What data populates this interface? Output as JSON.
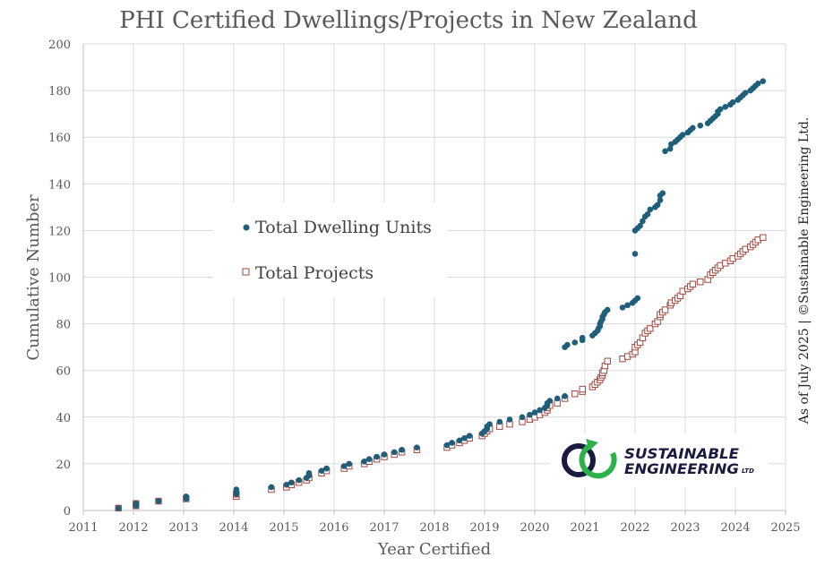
{
  "chart_data": {
    "type": "scatter",
    "title": "PHI Certified Dwellings/Projects in New Zealand",
    "xlabel": "Year Certified",
    "ylabel": "Cumulative Number",
    "xlim": [
      2011,
      2025
    ],
    "ylim": [
      0,
      200
    ],
    "x_ticks": [
      "2011",
      "2012",
      "2013",
      "2014",
      "2015",
      "2016",
      "2017",
      "2018",
      "2019",
      "2020",
      "2021",
      "2022",
      "2023",
      "2024",
      "2025"
    ],
    "y_ticks": [
      "0",
      "20",
      "40",
      "60",
      "80",
      "100",
      "120",
      "140",
      "160",
      "180",
      "200"
    ],
    "grid": true,
    "legend_position": "center-left",
    "series": [
      {
        "name": "Total Dwelling Units",
        "marker": "filled-circle",
        "color": "#1f5f7a",
        "points": [
          [
            2011.7,
            1
          ],
          [
            2012.05,
            2
          ],
          [
            2012.05,
            3
          ],
          [
            2012.5,
            4
          ],
          [
            2013.05,
            5
          ],
          [
            2013.05,
            6
          ],
          [
            2014.05,
            7
          ],
          [
            2014.05,
            8
          ],
          [
            2014.05,
            9
          ],
          [
            2014.75,
            10
          ],
          [
            2015.05,
            11
          ],
          [
            2015.15,
            12
          ],
          [
            2015.3,
            13
          ],
          [
            2015.45,
            14
          ],
          [
            2015.5,
            15
          ],
          [
            2015.5,
            16
          ],
          [
            2015.75,
            17
          ],
          [
            2015.85,
            18
          ],
          [
            2016.2,
            19
          ],
          [
            2016.3,
            20
          ],
          [
            2016.6,
            21
          ],
          [
            2016.7,
            22
          ],
          [
            2016.85,
            23
          ],
          [
            2017.0,
            24
          ],
          [
            2017.2,
            25
          ],
          [
            2017.35,
            26
          ],
          [
            2017.65,
            27
          ],
          [
            2018.25,
            28
          ],
          [
            2018.35,
            29
          ],
          [
            2018.5,
            30
          ],
          [
            2018.6,
            31
          ],
          [
            2018.7,
            32
          ],
          [
            2018.95,
            33
          ],
          [
            2019.0,
            34
          ],
          [
            2019.05,
            35
          ],
          [
            2019.05,
            36
          ],
          [
            2019.1,
            37
          ],
          [
            2019.3,
            38
          ],
          [
            2019.5,
            39
          ],
          [
            2019.75,
            40
          ],
          [
            2019.9,
            41
          ],
          [
            2020.0,
            42
          ],
          [
            2020.1,
            43
          ],
          [
            2020.2,
            44
          ],
          [
            2020.25,
            45
          ],
          [
            2020.25,
            46
          ],
          [
            2020.3,
            47
          ],
          [
            2020.45,
            48
          ],
          [
            2020.6,
            49
          ],
          [
            2020.6,
            70
          ],
          [
            2020.65,
            71
          ],
          [
            2020.8,
            72
          ],
          [
            2020.95,
            73
          ],
          [
            2020.95,
            74
          ],
          [
            2021.15,
            75
          ],
          [
            2021.2,
            76
          ],
          [
            2021.25,
            77
          ],
          [
            2021.27,
            78
          ],
          [
            2021.3,
            79
          ],
          [
            2021.3,
            80
          ],
          [
            2021.32,
            81
          ],
          [
            2021.35,
            82
          ],
          [
            2021.35,
            83
          ],
          [
            2021.38,
            84
          ],
          [
            2021.4,
            85
          ],
          [
            2021.45,
            86
          ],
          [
            2021.75,
            87
          ],
          [
            2021.85,
            88
          ],
          [
            2021.95,
            89
          ],
          [
            2022.0,
            90
          ],
          [
            2022.05,
            91
          ],
          [
            2022.0,
            110
          ],
          [
            2022.0,
            120
          ],
          [
            2022.05,
            121
          ],
          [
            2022.1,
            122
          ],
          [
            2022.15,
            124
          ],
          [
            2022.2,
            126
          ],
          [
            2022.25,
            127
          ],
          [
            2022.3,
            129
          ],
          [
            2022.4,
            130
          ],
          [
            2022.45,
            131
          ],
          [
            2022.5,
            133
          ],
          [
            2022.5,
            135
          ],
          [
            2022.55,
            136
          ],
          [
            2022.6,
            154
          ],
          [
            2022.7,
            155
          ],
          [
            2022.72,
            157
          ],
          [
            2022.8,
            158
          ],
          [
            2022.85,
            159
          ],
          [
            2022.9,
            160
          ],
          [
            2022.95,
            161
          ],
          [
            2023.05,
            162
          ],
          [
            2023.1,
            163
          ],
          [
            2023.15,
            164
          ],
          [
            2023.3,
            165
          ],
          [
            2023.45,
            166
          ],
          [
            2023.5,
            167
          ],
          [
            2023.55,
            168
          ],
          [
            2023.6,
            169
          ],
          [
            2023.65,
            170
          ],
          [
            2023.65,
            171
          ],
          [
            2023.7,
            172
          ],
          [
            2023.8,
            173
          ],
          [
            2023.9,
            174
          ],
          [
            2023.95,
            175
          ],
          [
            2024.05,
            176
          ],
          [
            2024.1,
            177
          ],
          [
            2024.15,
            178
          ],
          [
            2024.2,
            179
          ],
          [
            2024.3,
            180
          ],
          [
            2024.35,
            181
          ],
          [
            2024.4,
            182
          ],
          [
            2024.45,
            183
          ],
          [
            2024.55,
            184
          ]
        ]
      },
      {
        "name": "Total Projects",
        "marker": "hollow-square",
        "color": "#a0473f",
        "points": [
          [
            2011.7,
            1
          ],
          [
            2012.05,
            2
          ],
          [
            2012.05,
            3
          ],
          [
            2012.5,
            4
          ],
          [
            2013.05,
            5
          ],
          [
            2014.05,
            6
          ],
          [
            2014.05,
            7
          ],
          [
            2014.75,
            9
          ],
          [
            2015.05,
            10
          ],
          [
            2015.15,
            11
          ],
          [
            2015.3,
            12
          ],
          [
            2015.45,
            13
          ],
          [
            2015.5,
            14
          ],
          [
            2015.75,
            16
          ],
          [
            2015.85,
            17
          ],
          [
            2016.2,
            18
          ],
          [
            2016.3,
            19
          ],
          [
            2016.6,
            20
          ],
          [
            2016.7,
            21
          ],
          [
            2016.85,
            22
          ],
          [
            2017.0,
            23
          ],
          [
            2017.2,
            24
          ],
          [
            2017.35,
            25
          ],
          [
            2017.65,
            26
          ],
          [
            2018.25,
            27
          ],
          [
            2018.35,
            28
          ],
          [
            2018.5,
            29
          ],
          [
            2018.6,
            30
          ],
          [
            2018.7,
            31
          ],
          [
            2018.95,
            32
          ],
          [
            2019.0,
            33
          ],
          [
            2019.05,
            34
          ],
          [
            2019.1,
            35
          ],
          [
            2019.3,
            36
          ],
          [
            2019.5,
            37
          ],
          [
            2019.75,
            38
          ],
          [
            2019.9,
            39
          ],
          [
            2020.0,
            40
          ],
          [
            2020.1,
            41
          ],
          [
            2020.2,
            42
          ],
          [
            2020.25,
            43
          ],
          [
            2020.25,
            44
          ],
          [
            2020.3,
            45
          ],
          [
            2020.45,
            46
          ],
          [
            2020.6,
            48
          ],
          [
            2020.8,
            50
          ],
          [
            2020.95,
            51
          ],
          [
            2020.95,
            52
          ],
          [
            2021.15,
            53
          ],
          [
            2021.2,
            54
          ],
          [
            2021.25,
            55
          ],
          [
            2021.3,
            56
          ],
          [
            2021.32,
            57
          ],
          [
            2021.35,
            58
          ],
          [
            2021.35,
            59
          ],
          [
            2021.38,
            60
          ],
          [
            2021.4,
            62
          ],
          [
            2021.45,
            64
          ],
          [
            2021.75,
            65
          ],
          [
            2021.85,
            66
          ],
          [
            2021.95,
            67
          ],
          [
            2022.0,
            68
          ],
          [
            2022.0,
            70
          ],
          [
            2022.05,
            71
          ],
          [
            2022.1,
            72
          ],
          [
            2022.15,
            74
          ],
          [
            2022.2,
            76
          ],
          [
            2022.25,
            77
          ],
          [
            2022.3,
            78
          ],
          [
            2022.4,
            80
          ],
          [
            2022.45,
            81
          ],
          [
            2022.5,
            83
          ],
          [
            2022.5,
            84
          ],
          [
            2022.55,
            85
          ],
          [
            2022.6,
            86
          ],
          [
            2022.7,
            88
          ],
          [
            2022.72,
            89
          ],
          [
            2022.8,
            90
          ],
          [
            2022.85,
            91
          ],
          [
            2022.9,
            92
          ],
          [
            2022.95,
            94
          ],
          [
            2023.05,
            95
          ],
          [
            2023.1,
            96
          ],
          [
            2023.15,
            97
          ],
          [
            2023.3,
            98
          ],
          [
            2023.45,
            99
          ],
          [
            2023.5,
            101
          ],
          [
            2023.55,
            102
          ],
          [
            2023.6,
            103
          ],
          [
            2023.65,
            104
          ],
          [
            2023.7,
            105
          ],
          [
            2023.8,
            106
          ],
          [
            2023.9,
            107
          ],
          [
            2023.95,
            108
          ],
          [
            2024.05,
            109
          ],
          [
            2024.1,
            110
          ],
          [
            2024.15,
            111
          ],
          [
            2024.2,
            112
          ],
          [
            2024.3,
            113
          ],
          [
            2024.35,
            114
          ],
          [
            2024.4,
            115
          ],
          [
            2024.45,
            116
          ],
          [
            2024.55,
            117
          ]
        ]
      }
    ],
    "annotation": "As of July 2025  |  ©Sustainable Engineering Ltd."
  },
  "logo": {
    "line1": "SUSTAINABLE",
    "line2": "ENGINEERING",
    "suffix": "LTD",
    "colors": {
      "dark": "#1a1a40",
      "green": "#2db24a"
    }
  }
}
